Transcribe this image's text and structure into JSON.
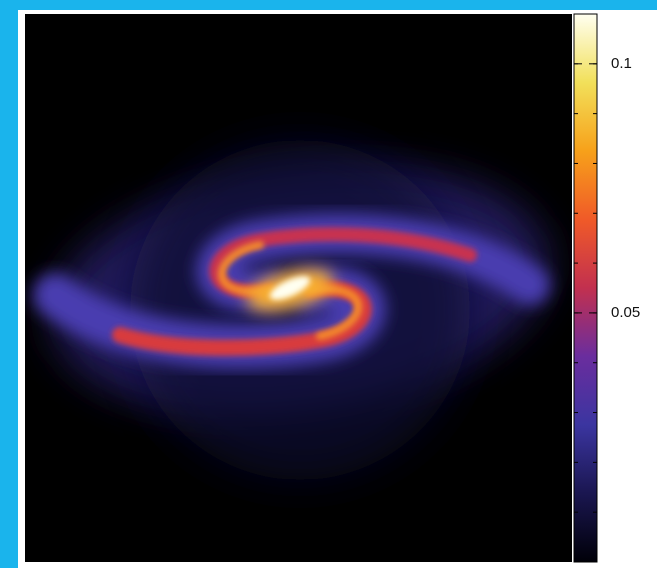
{
  "chart_data": {
    "type": "image",
    "colorbar": {
      "clim": [
        0,
        0.11
      ],
      "ticks": [
        0.1,
        0.05
      ],
      "colors": [
        "#000008",
        "#1a1650",
        "#3b35a0",
        "#6a2d9e",
        "#c2304f",
        "#f05a28",
        "#f7a11a",
        "#f2e05a",
        "#fffff0"
      ]
    }
  }
}
